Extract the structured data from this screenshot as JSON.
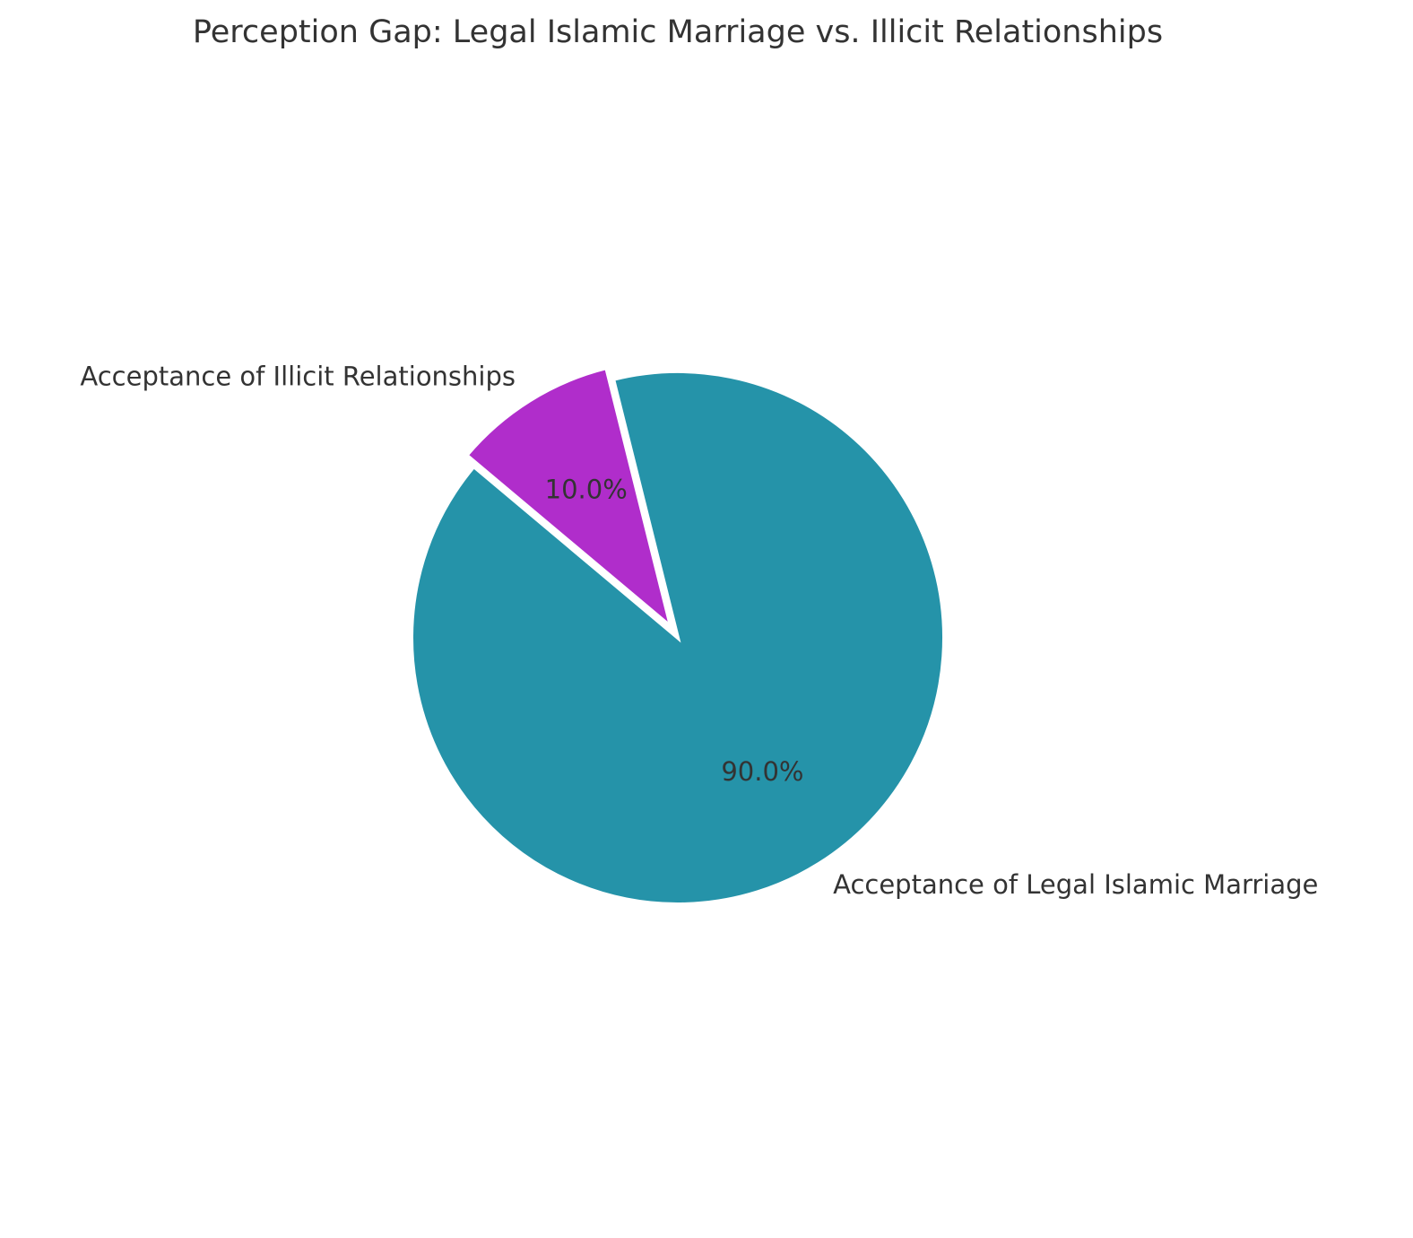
{
  "chart_data": {
    "type": "pie",
    "title": "Perception Gap: Legal Islamic Marriage vs. Illicit Relationships",
    "categories": [
      "Acceptance of Legal Islamic Marriage",
      "Acceptance of Illicit Relationships"
    ],
    "values": [
      90,
      10
    ],
    "value_labels": [
      "90.0%",
      "10.0%"
    ],
    "colors": [
      "#2593a9",
      "#b02dcb"
    ]
  }
}
